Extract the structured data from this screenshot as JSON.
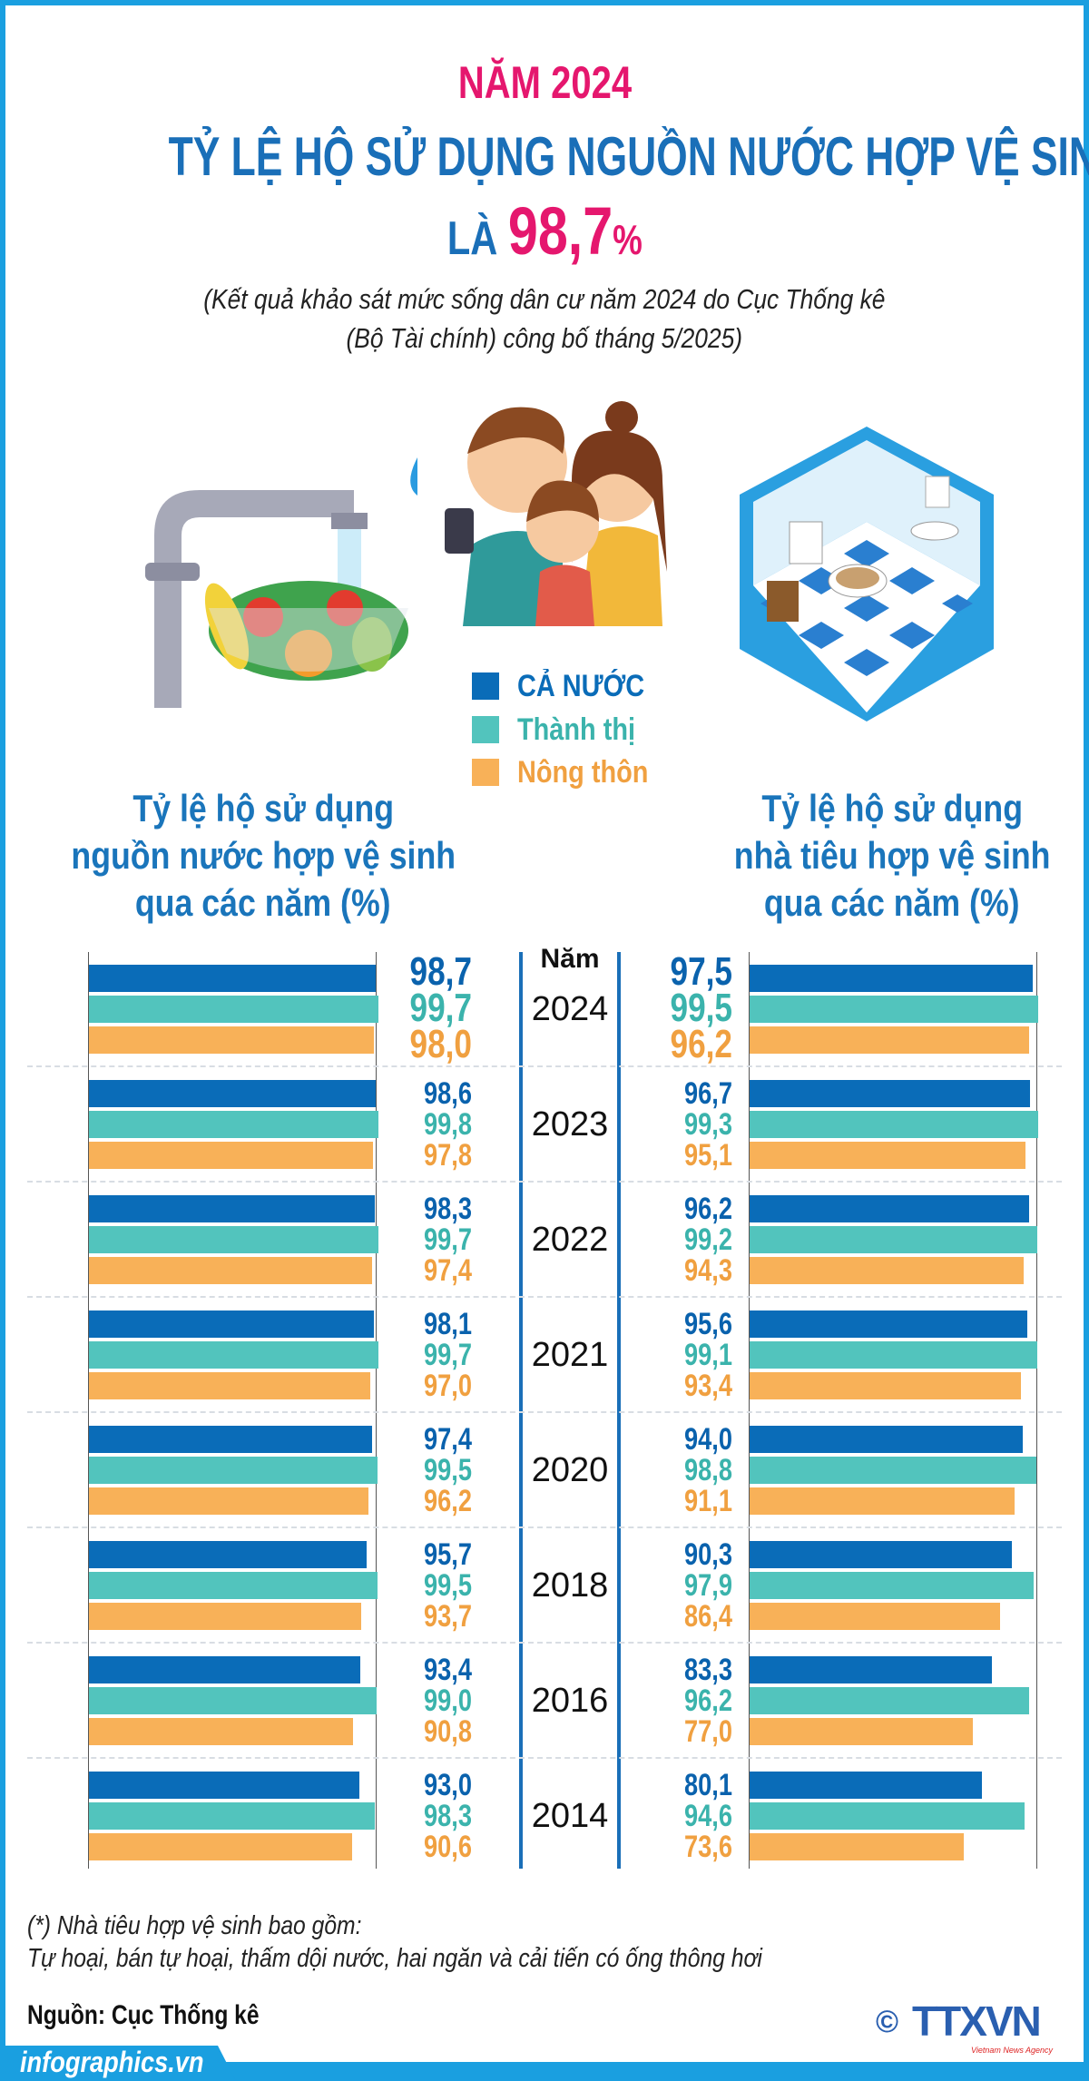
{
  "header": {
    "line1": "NĂM 2024",
    "line2": "TỶ LỆ HỘ SỬ DỤNG NGUỒN NƯỚC HỢP VỆ SINH",
    "line3_prefix": "LÀ",
    "line3_value": "98,7",
    "line3_unit": "%",
    "subtitle_line1": "(Kết quả khảo sát mức sống dân cư năm 2024 do Cục Thống kê",
    "subtitle_line2": "(Bộ Tài chính) công bố tháng 5/2025)"
  },
  "colors": {
    "ca_nuoc": "#0a6cb8",
    "thanh_thi": "#52c4bd",
    "nong_thon": "#f8b158",
    "title_pink": "#e5176e",
    "title_blue": "#1a6fb8",
    "frame": "#1a9fe0"
  },
  "year_header": "Năm",
  "chart_data": [
    {
      "type": "bar",
      "orientation": "horizontal",
      "title_lines": [
        "Tỷ lệ hộ sử dụng",
        "nguồn nước hợp vệ sinh",
        "qua các năm (%)"
      ],
      "categories": [
        "2024",
        "2023",
        "2022",
        "2021",
        "2020",
        "2018",
        "2016",
        "2014"
      ],
      "series": [
        {
          "name": "CẢ NƯỚC",
          "values": [
            98.7,
            98.6,
            98.3,
            98.1,
            97.4,
            95.7,
            93.4,
            93.0
          ],
          "labels": [
            "98,7",
            "98,6",
            "98,3",
            "98,1",
            "97,4",
            "95,7",
            "93,4",
            "93,0"
          ]
        },
        {
          "name": "Thành thị",
          "values": [
            99.7,
            99.8,
            99.7,
            99.7,
            99.5,
            99.5,
            99.0,
            98.3
          ],
          "labels": [
            "99,7",
            "99,8",
            "99,7",
            "99,7",
            "99,5",
            "99,5",
            "99,0",
            "98,3"
          ]
        },
        {
          "name": "Nông thôn",
          "values": [
            98.0,
            97.8,
            97.4,
            97.0,
            96.2,
            93.7,
            90.8,
            90.6
          ],
          "labels": [
            "98,0",
            "97,8",
            "97,4",
            "97,0",
            "96,2",
            "93,7",
            "90,8",
            "90,6"
          ]
        }
      ],
      "grid": false
    },
    {
      "type": "bar",
      "orientation": "horizontal",
      "title_lines": [
        "Tỷ lệ hộ sử dụng",
        "nhà tiêu hợp vệ sinh",
        "qua các năm (%)"
      ],
      "categories": [
        "2024",
        "2023",
        "2022",
        "2021",
        "2020",
        "2018",
        "2016",
        "2014"
      ],
      "series": [
        {
          "name": "CẢ NƯỚC",
          "values": [
            97.5,
            96.7,
            96.2,
            95.6,
            94.0,
            90.3,
            83.3,
            80.1
          ],
          "labels": [
            "97,5",
            "96,7",
            "96,2",
            "95,6",
            "94,0",
            "90,3",
            "83,3",
            "80,1"
          ]
        },
        {
          "name": "Thành thị",
          "values": [
            99.5,
            99.3,
            99.2,
            99.1,
            98.8,
            97.9,
            96.2,
            94.6
          ],
          "labels": [
            "99,5",
            "99,3",
            "99,2",
            "99,1",
            "98,8",
            "97,9",
            "96,2",
            "94,6"
          ]
        },
        {
          "name": "Nông thôn",
          "values": [
            96.2,
            95.1,
            94.3,
            93.4,
            91.1,
            86.4,
            77.0,
            73.6
          ],
          "labels": [
            "96,2",
            "95,1",
            "94,3",
            "93,4",
            "91,1",
            "86,4",
            "77,0",
            "73,6"
          ]
        }
      ],
      "grid": false
    }
  ],
  "footer": {
    "note_line1": "(*) Nhà tiêu hợp vệ sinh bao gồm:",
    "note_line2": "Tự hoại, bán tự hoại, thấm dội nước, hai ngăn và cải tiến có ống thông hơi",
    "source": "Nguồn: Cục Thống kê",
    "website": "infographics.vn",
    "logo_text": "TTXVN",
    "logo_sub": "Vietnam News Agency",
    "copyright_symbol": "©"
  },
  "illustrations": [
    "faucet-vegetables-icon",
    "family-icon",
    "bathroom-icon"
  ]
}
